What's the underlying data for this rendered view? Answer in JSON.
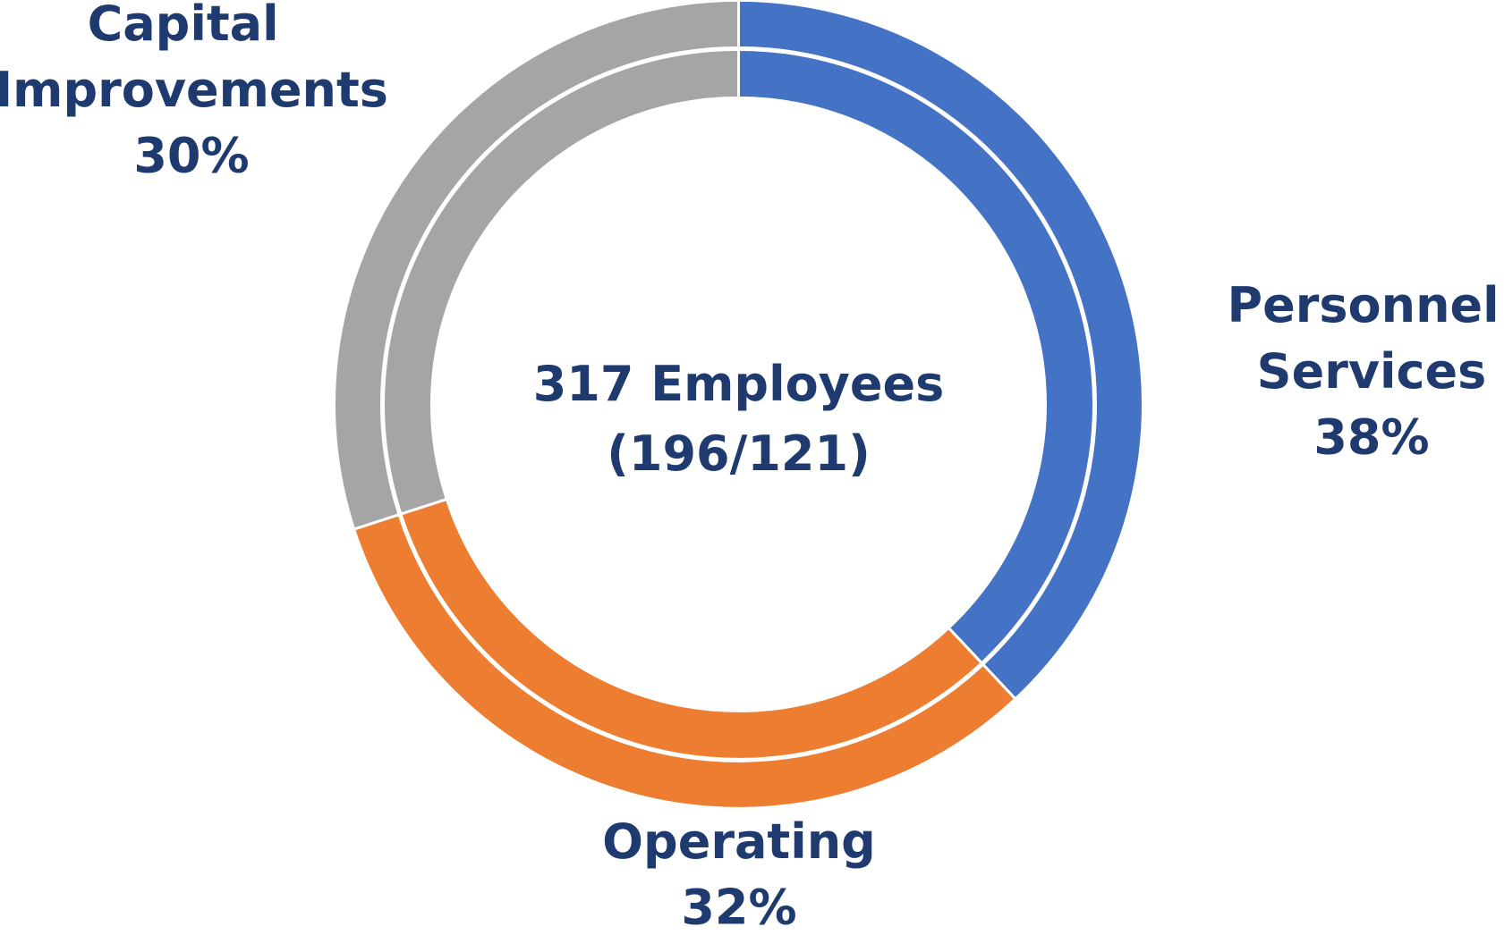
{
  "chart_data": {
    "type": "donut",
    "categories": [
      "Personnel Services",
      "Operating",
      "Capital Improvements"
    ],
    "colors": [
      "#4472c4",
      "#ed7d31",
      "#a5a5a5"
    ],
    "series": [
      {
        "values": [
          38,
          32,
          30
        ],
        "value_labels": [
          "38%",
          "32%",
          "30%"
        ]
      },
      {
        "values": [
          38,
          32,
          30
        ]
      }
    ],
    "annotations": [
      "317 Employees",
      "(196/121)"
    ]
  }
}
